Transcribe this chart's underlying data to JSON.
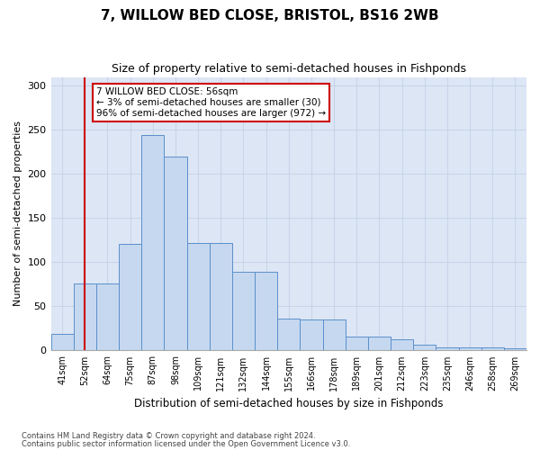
{
  "title": "7, WILLOW BED CLOSE, BRISTOL, BS16 2WB",
  "subtitle": "Size of property relative to semi-detached houses in Fishponds",
  "xlabel": "Distribution of semi-detached houses by size in Fishponds",
  "ylabel": "Number of semi-detached properties",
  "categories": [
    "41sqm",
    "52sqm",
    "64sqm",
    "75sqm",
    "87sqm",
    "98sqm",
    "109sqm",
    "121sqm",
    "132sqm",
    "144sqm",
    "155sqm",
    "166sqm",
    "178sqm",
    "189sqm",
    "201sqm",
    "212sqm",
    "223sqm",
    "235sqm",
    "246sqm",
    "258sqm",
    "269sqm"
  ],
  "values": [
    19,
    76,
    76,
    121,
    244,
    220,
    122,
    122,
    89,
    89,
    36,
    35,
    35,
    16,
    16,
    13,
    7,
    4,
    3,
    4,
    2
  ],
  "bar_color": "#c5d8f0",
  "bar_edge_color": "#5b8fc9",
  "vline_x": 1,
  "vline_color": "#cc0000",
  "annotation_box_text": "7 WILLOW BED CLOSE: 56sqm\n← 3% of semi-detached houses are smaller (30)\n96% of semi-detached houses are larger (972) →",
  "annotation_box_color": "#cc0000",
  "ylim": [
    0,
    310
  ],
  "yticks": [
    0,
    50,
    100,
    150,
    200,
    250,
    300
  ],
  "grid_color": "#c8d4e8",
  "bg_color": "#dde6f5",
  "footer_line1": "Contains HM Land Registry data © Crown copyright and database right 2024.",
  "footer_line2": "Contains public sector information licensed under the Open Government Licence v3.0."
}
